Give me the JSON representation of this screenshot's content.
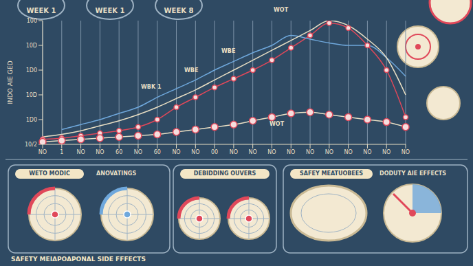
{
  "chart_data": {
    "type": "line",
    "ylabel": "INDO AIE GED",
    "categories": [
      "NO",
      "1",
      "NO",
      "NO",
      "60",
      "NO",
      "60",
      "NO",
      "NO",
      "00",
      "NO",
      "NO",
      "NO",
      "NO",
      "NO",
      "NO",
      "NO",
      "NO",
      "NO",
      "NO"
    ],
    "series": [
      {
        "color": "#e0485a",
        "marker": "circle",
        "values": [
          4,
          5,
          7,
          9,
          11,
          14,
          20,
          30,
          38,
          46,
          53,
          60,
          68,
          78,
          88,
          98,
          94,
          80,
          60,
          22
        ]
      },
      {
        "color": "#6fa8dc",
        "marker": "none",
        "values": [
          null,
          12,
          16,
          20,
          25,
          30,
          38,
          45,
          52,
          60,
          67,
          74,
          80,
          88,
          85,
          82,
          80,
          80,
          70,
          55
        ]
      },
      {
        "color": "#e9dfc4",
        "marker": "none",
        "values": [
          6,
          8,
          11,
          15,
          19,
          24,
          30,
          37,
          44,
          52,
          60,
          68,
          76,
          84,
          92,
          100,
          96,
          85,
          70,
          40
        ]
      },
      {
        "color": "#e9dfc4",
        "marker": "circle",
        "values": [
          2,
          3,
          4,
          5,
          6,
          7,
          8,
          10,
          12,
          14,
          16,
          19,
          22,
          25,
          26,
          24,
          22,
          20,
          18,
          14
        ]
      }
    ],
    "ylim": [
      0,
      100
    ],
    "yticks": [
      {
        "value": 0,
        "label": "10/2"
      },
      {
        "value": 20,
        "label": "1D0"
      },
      {
        "value": 40,
        "label": "10D"
      },
      {
        "value": 60,
        "label": "1D0"
      },
      {
        "value": 80,
        "label": "10D"
      },
      100
    ],
    "grid": true
  },
  "header": {
    "badges": [
      "WEEK 1",
      "WEEK 1",
      "WEEK 8"
    ]
  },
  "annotations": [
    "WOT",
    "WBE",
    "WBE",
    "WBK 1",
    "WOT"
  ],
  "panels": [
    {
      "title": "WETO MODIC",
      "subtitle": "ANOVATINGS"
    },
    {
      "title": "DEBIDDING OUVERS"
    },
    {
      "title": "SAFEY MEATUOBEES",
      "subtitle": "DODUTY AIE EFFECTS"
    }
  ],
  "footer": "SAFETY MEIAPOAPONAL SIDE FFFECTS"
}
